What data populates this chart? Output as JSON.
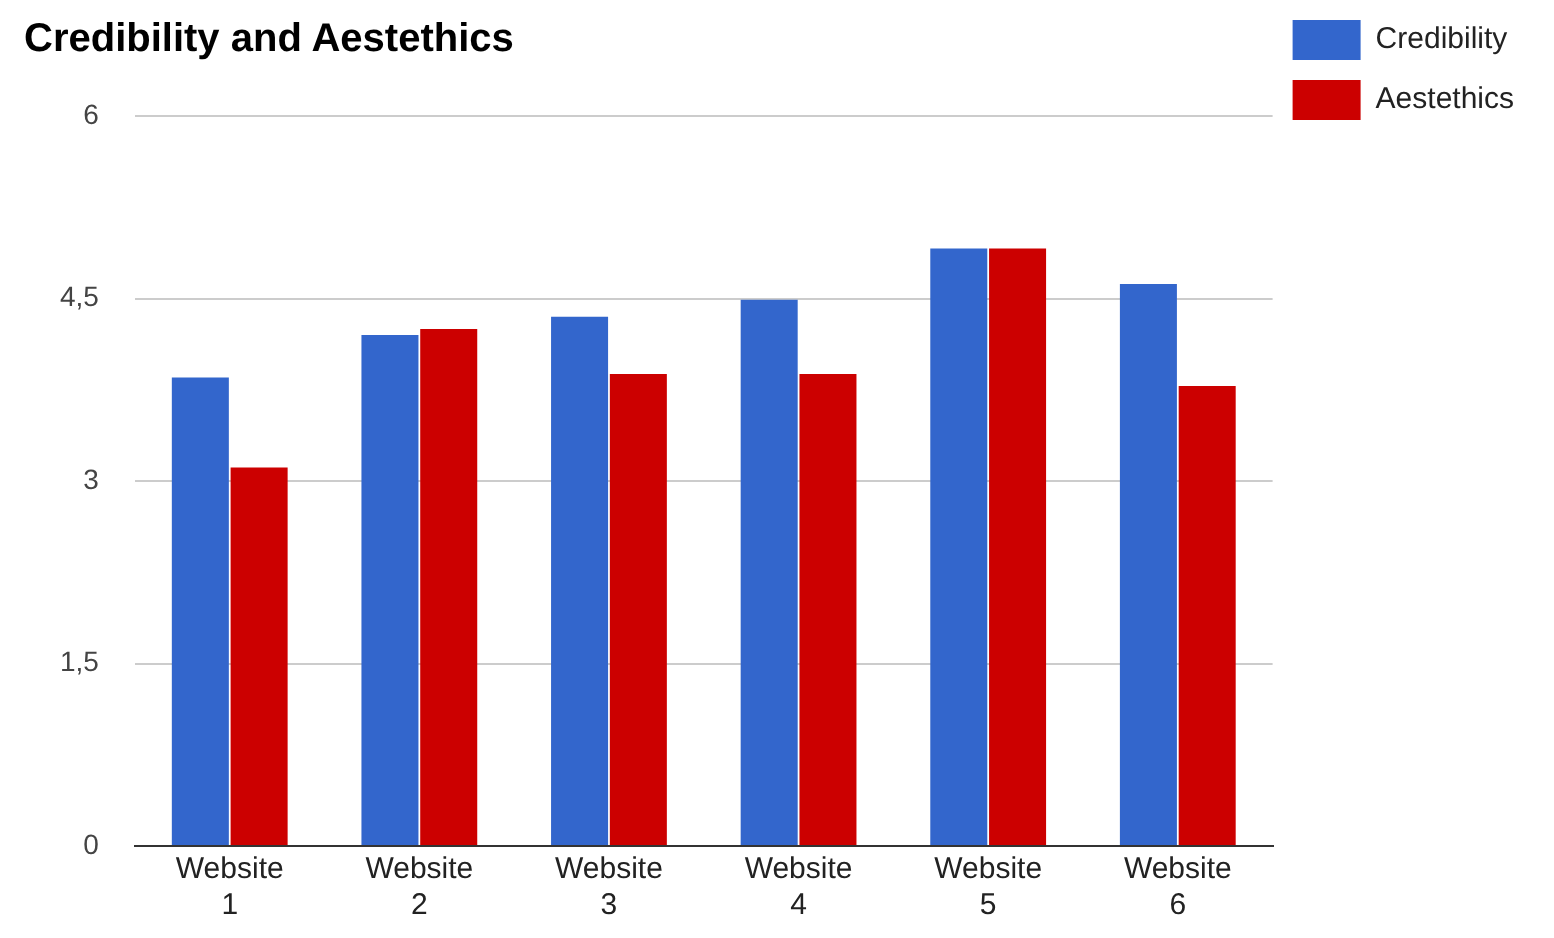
{
  "chart_data": {
    "type": "bar",
    "title": "Credibility and Aestethics",
    "categories": [
      "Website 1",
      "Website 2",
      "Website 3",
      "Website 4",
      "Website 5",
      "Website 6"
    ],
    "series": [
      {
        "name": "Credibility",
        "color": "#3366cc",
        "values": [
          3.85,
          4.2,
          4.35,
          4.49,
          4.91,
          4.62
        ]
      },
      {
        "name": "Aestethics",
        "color": "#cc0000",
        "values": [
          3.11,
          4.25,
          3.88,
          3.88,
          4.91,
          3.78
        ]
      }
    ],
    "ylim": [
      0,
      6
    ],
    "yticks": [
      0,
      {
        "value": 1.5,
        "label": "1,5"
      },
      3,
      {
        "value": 4.5,
        "label": "4,5"
      },
      6
    ],
    "grid": "y",
    "legend": "top right"
  }
}
